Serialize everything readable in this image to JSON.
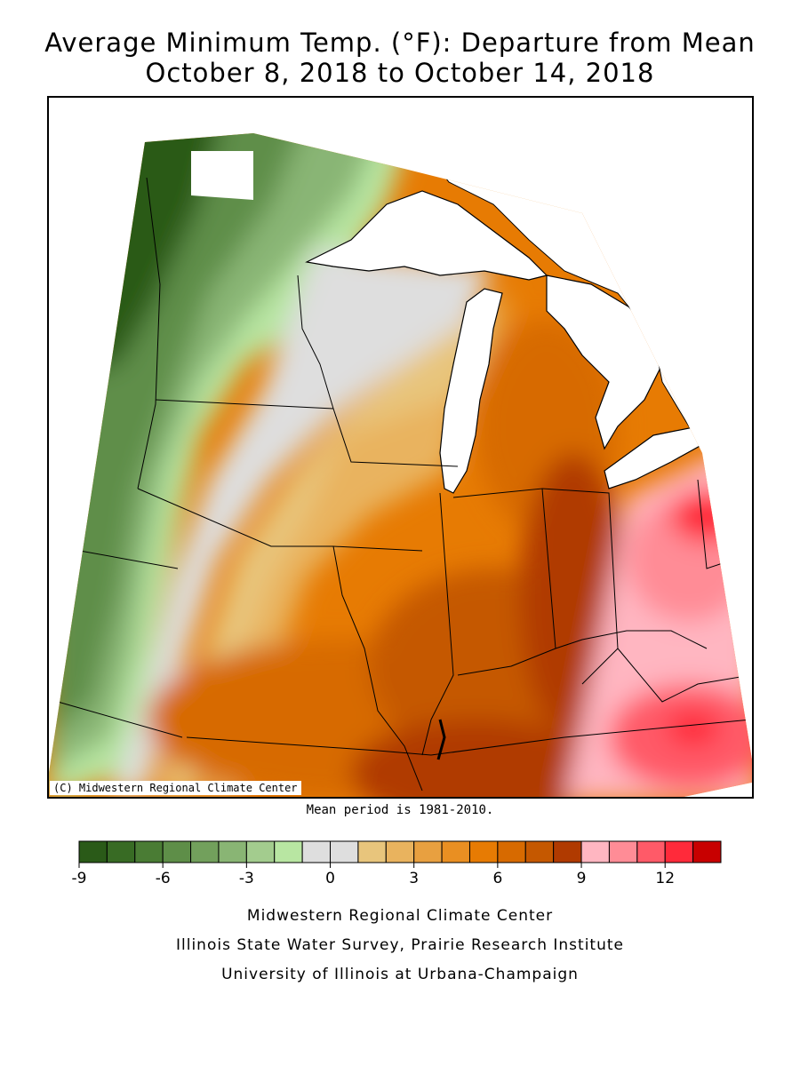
{
  "title_line1": "Average Minimum Temp. (°F): Departure from Mean",
  "title_line2": "October 8, 2018 to October 14, 2018",
  "map": {
    "credit": "(C) Midwestern Regional Climate Center",
    "features": [
      "upper-midwest-anomaly-map",
      "great-lakes",
      "state-borders"
    ],
    "colors": {
      "lake": "#ffffff",
      "border": "#000000"
    }
  },
  "mean_period_note": "Mean period is 1981-2010.",
  "legend": {
    "ticks": [
      "-9",
      "-6",
      "-3",
      "0",
      "3",
      "6",
      "9",
      "12"
    ],
    "tick_values": [
      -9,
      -6,
      -3,
      0,
      3,
      6,
      9,
      12
    ],
    "range": [
      -9,
      14
    ],
    "colors": [
      "#2a5a18",
      "#386b24",
      "#4a7c34",
      "#5e8e48",
      "#72a05c",
      "#89b574",
      "#a3cc8e",
      "#b8e6a2",
      "#dedede",
      "#dedede",
      "#e8c57c",
      "#e9b35e",
      "#e8a040",
      "#e98f22",
      "#e77b03",
      "#d76a00",
      "#c55800",
      "#b03a00",
      "#ffb6c1",
      "#ff8c96",
      "#ff5a68",
      "#ff2a3a",
      "#c80000"
    ]
  },
  "footer": {
    "line1": "Midwestern Regional Climate Center",
    "line2": "Illinois State Water Survey, Prairie Research Institute",
    "line3": "University of Illinois at Urbana-Champaign"
  }
}
